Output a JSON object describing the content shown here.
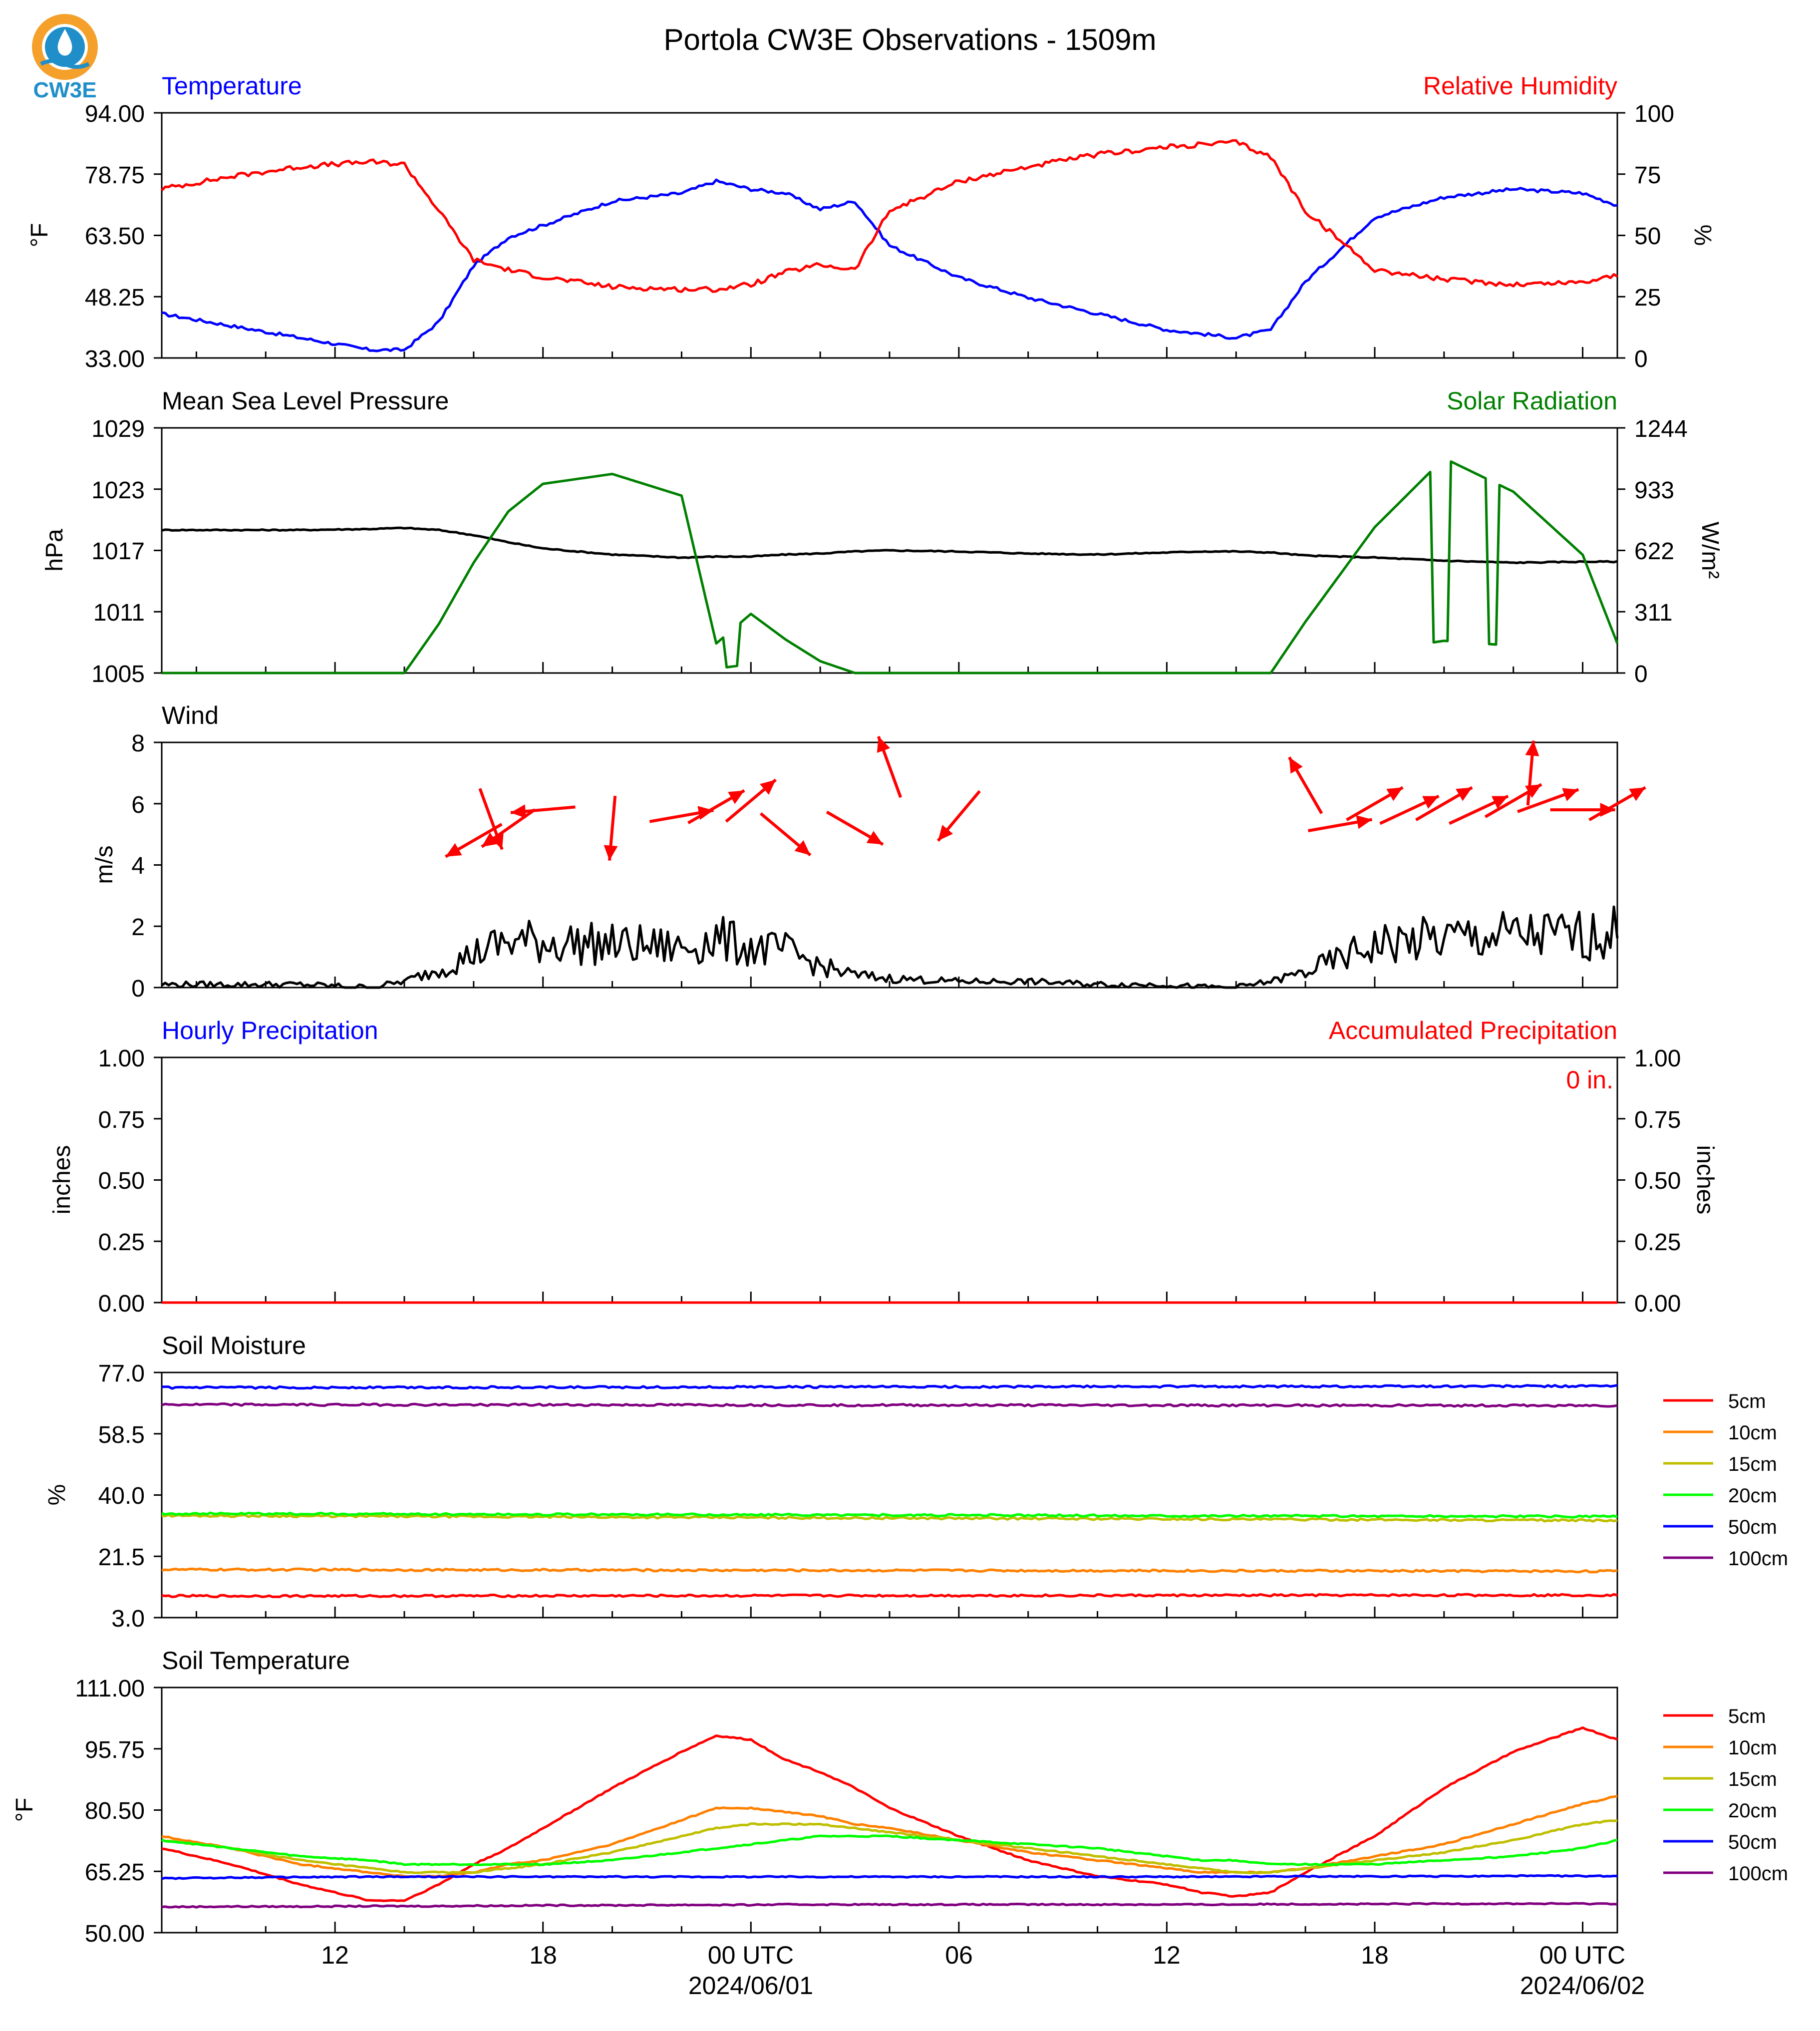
{
  "title": "Portola CW3E Observations - 1509m",
  "logo": {
    "text": "CW3E",
    "colors": {
      "sun": "#f4a02a",
      "drop": "#1f8ec9",
      "waves": "#1f8ec9"
    }
  },
  "x_axis": {
    "tick_labels": [
      "12",
      "18",
      "00 UTC",
      "06",
      "12",
      "18",
      "00 UTC"
    ],
    "date_labels": [
      "2024/06/01",
      "2024/06/02"
    ]
  },
  "colors": {
    "temperature": "#0000ff",
    "humidity": "#ff0000",
    "pressure": "#000000",
    "solar": "#008000",
    "wind": "#000000",
    "wind_arrow": "#ff0000",
    "soil_5cm": "#ff0000",
    "soil_10cm": "#ff8000",
    "soil_15cm": "#bfbf00",
    "soil_20cm": "#00ff00",
    "soil_50cm": "#0000ff",
    "soil_100cm": "#800080"
  },
  "chart_data": [
    {
      "type": "line",
      "title_left": "Temperature",
      "title_right": "Relative Humidity",
      "ylabel_left": "°F",
      "ylabel_right": "%",
      "ylim_left": [
        33.0,
        94.0
      ],
      "ylim_right": [
        0,
        100
      ],
      "yticks_left": [
        "94.00",
        "78.75",
        "63.50",
        "48.25",
        "33.00"
      ],
      "yticks_right": [
        "100",
        "75",
        "50",
        "25",
        "0"
      ],
      "x_hours": [
        7,
        9,
        11,
        13,
        14,
        15,
        16,
        17,
        18,
        20,
        22,
        23,
        24,
        25,
        26,
        27,
        28,
        30,
        32,
        34,
        36,
        37,
        38,
        39,
        40,
        42,
        44,
        46,
        48,
        49
      ],
      "series": [
        {
          "name": "Temperature",
          "axis": "left",
          "values": [
            44,
            41,
            38,
            35,
            35,
            42,
            56,
            63,
            66,
            72,
            74,
            77,
            75,
            74,
            70,
            72,
            61,
            53,
            48,
            44,
            40,
            39,
            38,
            40,
            52,
            68,
            73,
            75,
            74,
            71
          ]
        },
        {
          "name": "Relative Humidity",
          "axis": "right",
          "values": [
            69,
            74,
            78,
            80,
            79,
            60,
            40,
            36,
            33,
            29,
            28,
            28,
            30,
            35,
            38,
            36,
            60,
            72,
            78,
            83,
            86,
            87,
            88,
            82,
            60,
            36,
            32,
            30,
            31,
            34
          ]
        }
      ]
    },
    {
      "type": "line",
      "title_left": "Mean Sea Level Pressure",
      "title_right": "Solar Radiation",
      "ylabel_left": "hPa",
      "ylabel_right": "W/m²",
      "ylim_left": [
        1005,
        1029
      ],
      "ylim_right": [
        0,
        1244
      ],
      "yticks_left": [
        "1029",
        "1023",
        "1017",
        "1011",
        "1005"
      ],
      "yticks_right": [
        "1244",
        "933",
        "622",
        "311",
        "0"
      ],
      "x_hours": [
        7,
        9,
        11,
        13,
        14,
        15,
        16,
        17,
        18,
        20,
        22,
        23,
        24,
        25,
        26,
        27,
        28,
        30,
        32,
        34,
        36,
        37,
        38,
        39,
        40,
        42,
        44,
        46,
        48,
        49
      ],
      "series": [
        {
          "name": "Mean Sea Level Pressure",
          "axis": "left",
          "values": [
            1019.0,
            1019.0,
            1019.0,
            1019.1,
            1019.2,
            1019.0,
            1018.5,
            1017.8,
            1017.2,
            1016.6,
            1016.3,
            1016.4,
            1016.4,
            1016.6,
            1016.7,
            1016.9,
            1017.0,
            1016.9,
            1016.7,
            1016.6,
            1016.8,
            1016.9,
            1016.9,
            1016.8,
            1016.5,
            1016.3,
            1016.0,
            1015.8,
            1015.9,
            1015.9
          ]
        },
        {
          "name": "Solar Radiation",
          "axis": "right",
          "values": [
            0,
            0,
            0,
            0,
            0,
            250,
            560,
            820,
            960,
            1010,
            900,
            150,
            300,
            170,
            60,
            0,
            0,
            0,
            0,
            0,
            0,
            0,
            0,
            0,
            260,
            740,
            1090,
            920,
            600,
            150
          ]
        }
      ]
    },
    {
      "type": "line",
      "title_left": "Wind",
      "ylabel_left": "m/s",
      "ylim_left": [
        0,
        8
      ],
      "yticks_left": [
        "8",
        "6",
        "4",
        "2",
        "0"
      ],
      "x_hours": [
        7,
        9,
        11,
        13,
        14,
        15,
        16,
        17,
        18,
        20,
        22,
        23,
        24,
        25,
        26,
        27,
        28,
        30,
        32,
        34,
        36,
        37,
        38,
        39,
        40,
        42,
        44,
        46,
        48,
        49
      ],
      "series": [
        {
          "name": "Wind Speed",
          "axis": "left",
          "values": [
            0.1,
            0.1,
            0.1,
            0.0,
            0.2,
            0.6,
            1.1,
            1.5,
            1.5,
            1.4,
            1.3,
            1.6,
            1.3,
            1.2,
            0.7,
            0.4,
            0.3,
            0.2,
            0.2,
            0.1,
            0.1,
            0.0,
            0.0,
            0.2,
            0.5,
            1.4,
            1.6,
            1.7,
            1.7,
            1.8
          ]
        }
      ],
      "wind_arrows": [
        {
          "hour": 16.0,
          "dir_deg": 60,
          "speed": 4.8
        },
        {
          "hour": 16.5,
          "dir_deg": 340,
          "speed": 5.5
        },
        {
          "hour": 17.0,
          "dir_deg": 55,
          "speed": 5.2
        },
        {
          "hour": 18.0,
          "dir_deg": 85,
          "speed": 5.8
        },
        {
          "hour": 20.0,
          "dir_deg": 5,
          "speed": 5.2
        },
        {
          "hour": 22.0,
          "dir_deg": 260,
          "speed": 5.6
        },
        {
          "hour": 23.0,
          "dir_deg": 240,
          "speed": 5.9
        },
        {
          "hour": 24.0,
          "dir_deg": 230,
          "speed": 6.1
        },
        {
          "hour": 25.0,
          "dir_deg": 310,
          "speed": 5.0
        },
        {
          "hour": 27.0,
          "dir_deg": 300,
          "speed": 5.2
        },
        {
          "hour": 28.0,
          "dir_deg": 160,
          "speed": 7.2
        },
        {
          "hour": 30.0,
          "dir_deg": 40,
          "speed": 5.6
        },
        {
          "hour": 40.0,
          "dir_deg": 150,
          "speed": 6.6
        },
        {
          "hour": 41.0,
          "dir_deg": 260,
          "speed": 5.3
        },
        {
          "hour": 42.0,
          "dir_deg": 240,
          "speed": 6.0
        },
        {
          "hour": 43.0,
          "dir_deg": 245,
          "speed": 5.8
        },
        {
          "hour": 44.0,
          "dir_deg": 240,
          "speed": 6.0
        },
        {
          "hour": 45.0,
          "dir_deg": 245,
          "speed": 5.8
        },
        {
          "hour": 46.0,
          "dir_deg": 240,
          "speed": 6.1
        },
        {
          "hour": 46.5,
          "dir_deg": 185,
          "speed": 7.0
        },
        {
          "hour": 47.0,
          "dir_deg": 250,
          "speed": 6.1
        },
        {
          "hour": 48.0,
          "dir_deg": 270,
          "speed": 5.8
        },
        {
          "hour": 49.0,
          "dir_deg": 240,
          "speed": 6.0
        }
      ]
    },
    {
      "type": "line",
      "title_left": "Hourly Precipitation",
      "title_right": "Accumulated Precipitation",
      "ylabel_left": "inches",
      "ylabel_right": "inches",
      "ylim_left": [
        0.0,
        1.0
      ],
      "ylim_right": [
        0.0,
        1.0
      ],
      "yticks_left": [
        "1.00",
        "0.75",
        "0.50",
        "0.25",
        "0.00"
      ],
      "yticks_right": [
        "1.00",
        "0.75",
        "0.50",
        "0.25",
        "0.00"
      ],
      "annotation": "0 in.",
      "x_hours": [
        7,
        49
      ],
      "series": [
        {
          "name": "Hourly Precipitation",
          "axis": "left",
          "values": [
            0,
            0
          ]
        },
        {
          "name": "Accumulated Precipitation",
          "axis": "right",
          "values": [
            0,
            0
          ]
        }
      ]
    },
    {
      "type": "line",
      "title_left": "Soil Moisture",
      "ylabel_left": "%",
      "ylim_left": [
        3.0,
        77.0
      ],
      "yticks_left": [
        "77.0",
        "58.5",
        "40.0",
        "21.5",
        "3.0"
      ],
      "x_hours": [
        7,
        49
      ],
      "series": [
        {
          "name": "5cm",
          "values": [
            9.5,
            9.8
          ]
        },
        {
          "name": "10cm",
          "values": [
            17.5,
            17.0
          ]
        },
        {
          "name": "15cm",
          "values": [
            33.8,
            32.3
          ]
        },
        {
          "name": "20cm",
          "values": [
            34.4,
            33.5
          ]
        },
        {
          "name": "50cm",
          "values": [
            72.4,
            72.9
          ]
        },
        {
          "name": "100cm",
          "values": [
            67.3,
            67.0
          ]
        }
      ],
      "legend": [
        "5cm",
        "10cm",
        "15cm",
        "20cm",
        "50cm",
        "100cm"
      ]
    },
    {
      "type": "line",
      "title_left": "Soil Temperature",
      "ylabel_left": "°F",
      "ylim_left": [
        50.0,
        111.0
      ],
      "yticks_left": [
        "111.00",
        "95.75",
        "80.50",
        "65.25",
        "50.00"
      ],
      "x_hours": [
        7,
        9,
        11,
        13,
        14,
        15,
        16,
        17,
        18,
        20,
        22,
        23,
        24,
        25,
        26,
        27,
        28,
        30,
        32,
        34,
        36,
        37,
        38,
        39,
        40,
        42,
        44,
        46,
        48,
        49
      ],
      "series": [
        {
          "name": "5cm",
          "values": [
            71,
            67,
            62,
            58,
            58,
            62,
            67,
            71,
            76,
            86,
            95,
            99,
            98,
            93,
            90,
            86,
            81,
            74,
            68,
            64,
            62,
            60,
            59,
            60,
            65,
            74,
            86,
            95,
            101,
            98
          ]
        },
        {
          "name": "10cm",
          "values": [
            74,
            71,
            67,
            65,
            64,
            64,
            65,
            67,
            68,
            72,
            78,
            81,
            81,
            80,
            79,
            77,
            76,
            73,
            70,
            68,
            66,
            65,
            65,
            65,
            66,
            69,
            72,
            77,
            82,
            84
          ]
        },
        {
          "name": "15cm",
          "values": [
            73,
            71,
            68,
            66,
            65,
            65,
            65,
            66,
            67,
            70,
            74,
            76,
            77,
            77,
            77,
            76,
            75,
            73,
            71,
            69,
            67,
            66,
            65,
            65,
            66,
            68,
            70,
            73,
            77,
            78
          ]
        },
        {
          "name": "20cm",
          "values": [
            73,
            71,
            69,
            68,
            67,
            67,
            67,
            67,
            67,
            68,
            70,
            71,
            72,
            73,
            74,
            74,
            74,
            73,
            72,
            71,
            69,
            68,
            68,
            67,
            67,
            67,
            68,
            69,
            71,
            73
          ]
        },
        {
          "name": "50cm",
          "values": [
            63.5,
            63.7,
            63.8,
            63.9,
            63.9,
            63.9,
            63.9,
            63.9,
            63.9,
            63.9,
            63.9,
            63.9,
            63.9,
            63.9,
            63.9,
            63.9,
            63.9,
            63.9,
            63.9,
            63.9,
            63.9,
            63.9,
            63.9,
            64.0,
            64.0,
            64.0,
            64.0,
            64.1,
            64.1,
            64.1
          ]
        },
        {
          "name": "100cm",
          "values": [
            56.4,
            56.5,
            56.5,
            56.6,
            56.6,
            56.6,
            56.7,
            56.7,
            56.8,
            56.8,
            56.9,
            56.9,
            56.9,
            57.0,
            57.0,
            57.0,
            57.0,
            57.0,
            57.0,
            57.0,
            57.0,
            57.0,
            57.0,
            57.1,
            57.1,
            57.1,
            57.2,
            57.2,
            57.2,
            57.2
          ]
        }
      ],
      "legend": [
        "5cm",
        "10cm",
        "15cm",
        "20cm",
        "50cm",
        "100cm"
      ]
    }
  ]
}
